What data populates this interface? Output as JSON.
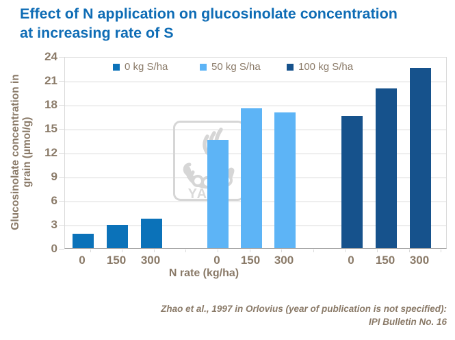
{
  "title": {
    "line1": "Effect of N application on glucosinolate concentration",
    "line2": "at increasing rate of S"
  },
  "chart_data": {
    "type": "bar",
    "title": "Effect of N application on glucosinolate concentration at increasing rate of S",
    "categories": [
      "0",
      "150",
      "300"
    ],
    "series": [
      {
        "name": "0 kg S/ha",
        "color": "#0b72b9",
        "values": [
          1.8,
          2.9,
          3.7
        ]
      },
      {
        "name": "50 kg S/ha",
        "color": "#5db4f6",
        "values": [
          13.5,
          17.5,
          17.0
        ]
      },
      {
        "name": "100 kg S/ha",
        "color": "#16528c",
        "values": [
          16.5,
          20.0,
          22.5
        ]
      }
    ],
    "xlabel": "N rate (kg/ha)",
    "ylabel": "Glucosinolate concentration in grain (µmol/g)",
    "ylabel_lines": [
      "Glucosinolate concentration in",
      "grain (µmol/g)"
    ],
    "ylim": [
      0,
      24
    ],
    "ytick_step": 3,
    "grid": true,
    "legend_position": "top"
  },
  "citation": {
    "line1": "Zhao et al., 1997 in Orlovius (year of publication is not specified):",
    "line2": "IPI Bulletin No. 16"
  },
  "watermark": {
    "text": "YARA"
  },
  "colors": {
    "title_text": "#0e6cb5",
    "axis_text": "#8a7a68",
    "gridline": "#d9d9d9",
    "axis_line": "#a8a8a8",
    "watermark": "#d6d6d6"
  }
}
